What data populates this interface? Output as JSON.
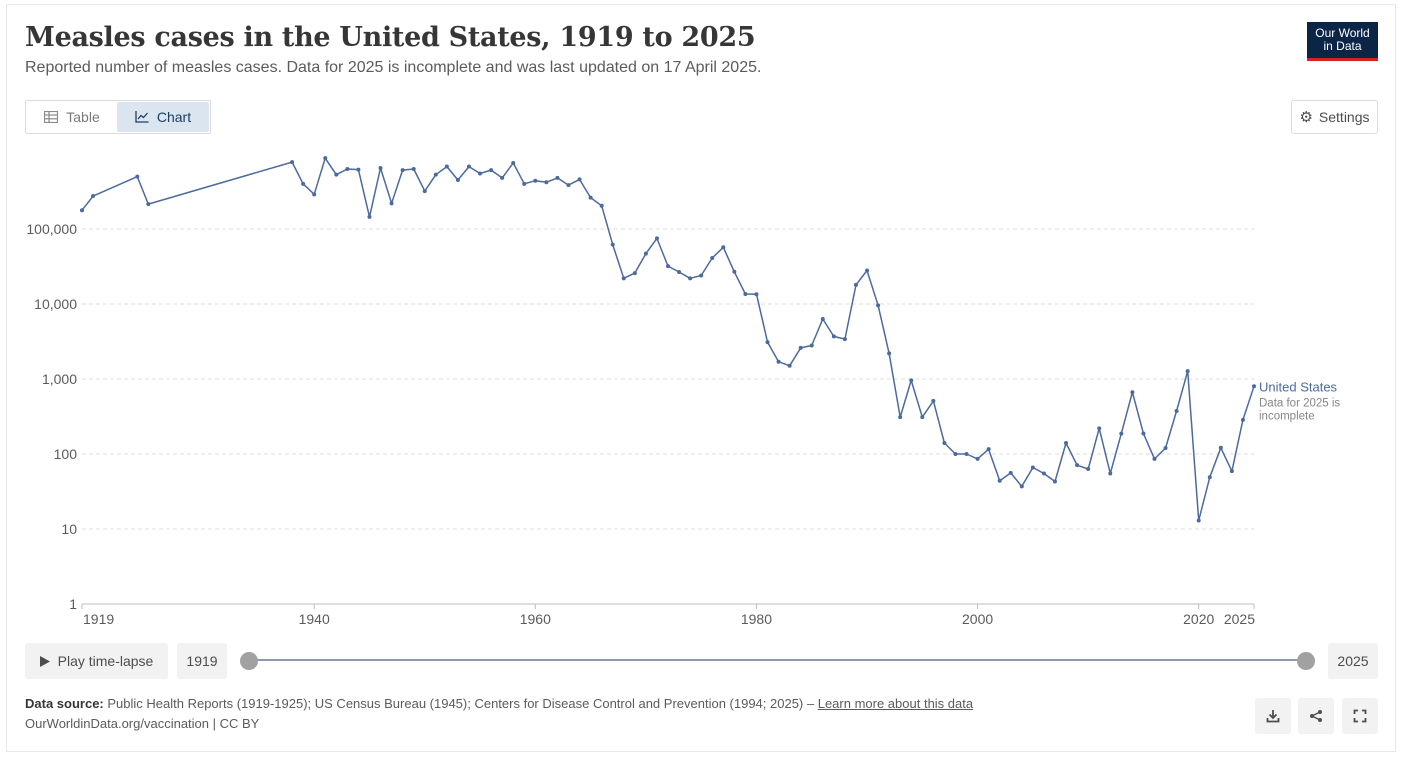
{
  "header": {
    "title": "Measles cases in the United States, 1919 to 2025",
    "subtitle": "Reported number of measles cases. Data for 2025 is incomplete and was last updated on 17 April 2025.",
    "logo_line1": "Our World",
    "logo_line2": "in Data"
  },
  "tabs": {
    "table_label": "Table",
    "chart_label": "Chart"
  },
  "settings_label": "Settings",
  "timeline": {
    "play_label": "Play time-lapse",
    "start_year": "1919",
    "end_year": "2025"
  },
  "footer": {
    "source_label": "Data source:",
    "source_text": "Public Health Reports (1919-1925); US Census Bureau (1945); Centers for Disease Control and Prevention (1994; 2025) – ",
    "learn_more": "Learn more about this data",
    "note": "OurWorldinData.org/vaccination | CC BY"
  },
  "colors": {
    "line": "#4c6a9c",
    "grid": "#dddddd",
    "axis": "#5b5b5b"
  },
  "icons": [
    "table-icon",
    "chart-icon",
    "gear-icon",
    "play-icon",
    "download-icon",
    "share-icon",
    "fullscreen-icon"
  ],
  "chart_data": {
    "type": "line",
    "scale": "log",
    "ylim": [
      1,
      1000000
    ],
    "xlim": [
      1919,
      2025
    ],
    "y_ticks": [
      1,
      10,
      100,
      1000,
      10000,
      100000
    ],
    "y_tick_labels": [
      "1",
      "10",
      "100",
      "1,000",
      "10,000",
      "100,000"
    ],
    "x_ticks": [
      1919,
      1940,
      1960,
      1980,
      2000,
      2020,
      2025
    ],
    "x_tick_labels": [
      "1919",
      "1940",
      "1960",
      "1980",
      "2000",
      "2020",
      "2025"
    ],
    "series": [
      {
        "name": "United States",
        "label_note": "Data for 2025 is incomplete",
        "points": [
          [
            1919,
            178000
          ],
          [
            1920,
            275000
          ],
          [
            1924,
            500000
          ],
          [
            1925,
            215000
          ],
          [
            1938,
            780000
          ],
          [
            1939,
            400000
          ],
          [
            1940,
            290000
          ],
          [
            1941,
            880000
          ],
          [
            1942,
            530000
          ],
          [
            1943,
            630000
          ],
          [
            1944,
            620000
          ],
          [
            1945,
            145000
          ],
          [
            1946,
            650000
          ],
          [
            1947,
            220000
          ],
          [
            1948,
            610000
          ],
          [
            1949,
            630000
          ],
          [
            1950,
            320000
          ],
          [
            1951,
            530000
          ],
          [
            1952,
            680000
          ],
          [
            1953,
            450000
          ],
          [
            1954,
            680000
          ],
          [
            1955,
            550000
          ],
          [
            1956,
            610000
          ],
          [
            1957,
            480000
          ],
          [
            1958,
            760000
          ],
          [
            1959,
            400000
          ],
          [
            1960,
            440000
          ],
          [
            1961,
            420000
          ],
          [
            1962,
            480000
          ],
          [
            1963,
            385000
          ],
          [
            1964,
            458000
          ],
          [
            1965,
            262000
          ],
          [
            1966,
            204000
          ],
          [
            1967,
            62000
          ],
          [
            1968,
            22000
          ],
          [
            1969,
            25800
          ],
          [
            1970,
            47000
          ],
          [
            1971,
            75000
          ],
          [
            1972,
            32000
          ],
          [
            1973,
            26700
          ],
          [
            1974,
            22000
          ],
          [
            1975,
            24000
          ],
          [
            1976,
            41000
          ],
          [
            1977,
            57000
          ],
          [
            1978,
            26900
          ],
          [
            1979,
            13600
          ],
          [
            1980,
            13500
          ],
          [
            1981,
            3100
          ],
          [
            1982,
            1700
          ],
          [
            1983,
            1500
          ],
          [
            1984,
            2600
          ],
          [
            1985,
            2800
          ],
          [
            1986,
            6300
          ],
          [
            1987,
            3700
          ],
          [
            1988,
            3400
          ],
          [
            1989,
            18000
          ],
          [
            1990,
            28000
          ],
          [
            1991,
            9600
          ],
          [
            1992,
            2200
          ],
          [
            1993,
            310
          ],
          [
            1994,
            960
          ],
          [
            1995,
            310
          ],
          [
            1996,
            510
          ],
          [
            1997,
            140
          ],
          [
            1998,
            100
          ],
          [
            1999,
            100
          ],
          [
            2000,
            86
          ],
          [
            2001,
            116
          ],
          [
            2002,
            44
          ],
          [
            2003,
            56
          ],
          [
            2004,
            37
          ],
          [
            2005,
            66
          ],
          [
            2006,
            55
          ],
          [
            2007,
            43
          ],
          [
            2008,
            140
          ],
          [
            2009,
            71
          ],
          [
            2010,
            63
          ],
          [
            2011,
            220
          ],
          [
            2012,
            55
          ],
          [
            2013,
            187
          ],
          [
            2014,
            667
          ],
          [
            2015,
            188
          ],
          [
            2016,
            86
          ],
          [
            2017,
            120
          ],
          [
            2018,
            375
          ],
          [
            2019,
            1274
          ],
          [
            2020,
            13
          ],
          [
            2021,
            49
          ],
          [
            2022,
            121
          ],
          [
            2023,
            59
          ],
          [
            2024,
            285
          ],
          [
            2025,
            800
          ]
        ]
      }
    ]
  }
}
